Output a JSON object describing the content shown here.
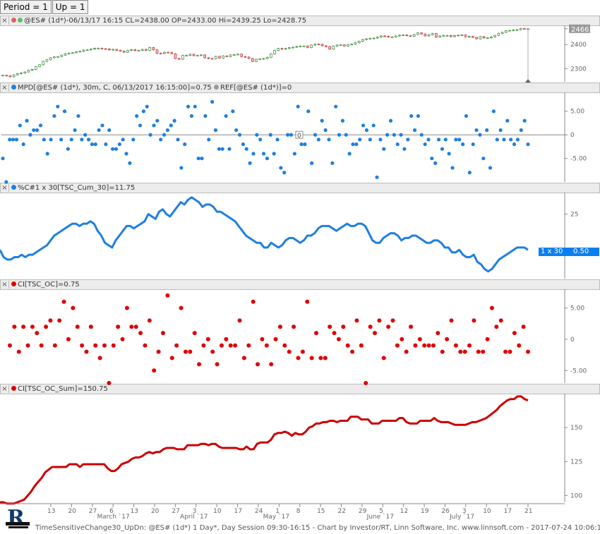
{
  "tabs": [
    {
      "label": "Period = 1"
    },
    {
      "label": "Up = 1"
    }
  ],
  "panes": [
    {
      "title": "@ES# (1d*)-06/13/17 16:15 CL=2438.00 OP=2433.00 Hi=2439.25 Lo=2428.75",
      "dot_colors": [
        "#e06060",
        "#60c060"
      ]
    },
    {
      "title": "MPD[@ES# (1d*), 30m, C, 06/13/2017 16:15:00]=0.75 ",
      "title2": "REF[@ES# (1d*)]=0",
      "dot_colors": [
        "#1e7fe0"
      ]
    },
    {
      "title": "%C#1 x 30[TSC_Cum_30]=11.75",
      "dot_colors": [
        "#1e7fe0"
      ]
    },
    {
      "title": "CI[TSC_OC]=0.75",
      "dot_colors": [
        "#e00000"
      ]
    },
    {
      "title": "CI[TSC_OC_Sum]=150.75",
      "dot_colors": [
        "#e00000"
      ]
    }
  ],
  "badge": {
    "label": "1 x 30",
    "value": "0.50"
  },
  "zero_marker": "0",
  "last_price": "2466",
  "footer": "TimeSensitiveChange30_UpDn: @ES# (1d*) 1 Day*, Day Session 09:30-16:15 - Chart by Investor/RT, Linn Software, Inc. www.linnsoft.com - 2017-07-24 10:06:10",
  "colors": {
    "blue": "#1e7fe0",
    "red": "#e00000",
    "price_up": "#2e8b2e",
    "price_down": "#cc3333"
  },
  "chart_data": [
    {
      "type": "candlestick",
      "title": "@ES# (1d*)-06/13/17 16:15 CL=2438.00 OP=2433.00 Hi=2439.25 Lo=2428.75",
      "yticks": [
        2466,
        2400,
        2300
      ],
      "ylim": [
        2245,
        2480
      ],
      "close": [
        2272,
        2270,
        2266,
        2274,
        2279,
        2282,
        2286,
        2293,
        2297,
        2308,
        2316,
        2330,
        2337,
        2345,
        2349,
        2350,
        2356,
        2362,
        2364,
        2366,
        2370,
        2372,
        2377,
        2378,
        2381,
        2385,
        2385,
        2383,
        2382,
        2378,
        2380,
        2376,
        2373,
        2368,
        2376,
        2379,
        2375,
        2376,
        2380,
        2376,
        2388,
        2378,
        2364,
        2363,
        2368,
        2367,
        2362,
        2342,
        2339,
        2355,
        2355,
        2360,
        2354,
        2355,
        2357,
        2345,
        2342,
        2341,
        2351,
        2344,
        2353,
        2350,
        2357,
        2358,
        2360,
        2350,
        2348,
        2342,
        2330,
        2339,
        2340,
        2342,
        2347,
        2361,
        2376,
        2384,
        2381,
        2384,
        2387,
        2389,
        2392,
        2394,
        2394,
        2388,
        2398,
        2402,
        2401,
        2395,
        2392,
        2381,
        2394,
        2398,
        2399,
        2394,
        2400,
        2402,
        2408,
        2414,
        2421,
        2424,
        2426,
        2427,
        2431,
        2436,
        2435,
        2432,
        2432,
        2436,
        2439,
        2440,
        2437,
        2435,
        2442,
        2449,
        2444,
        2436,
        2441,
        2446,
        2431,
        2436,
        2438,
        2438,
        2433,
        2438,
        2439,
        2440,
        2432,
        2434,
        2430,
        2424,
        2433,
        2428,
        2428,
        2432,
        2438,
        2447,
        2451,
        2458,
        2459,
        2461,
        2462,
        2467,
        2466,
        2466
      ]
    },
    {
      "type": "scatter",
      "title": "MPD",
      "ylim": [
        -10,
        9
      ],
      "yticks": [
        5,
        0,
        -5
      ],
      "values": [
        -5,
        -10,
        -1,
        -1,
        -1,
        2,
        -2,
        3,
        0,
        1,
        1,
        2,
        -1,
        -4,
        -1,
        4,
        6,
        -1,
        5,
        -3,
        -1,
        1,
        4,
        -1,
        0,
        -1,
        -2,
        -2,
        1,
        2,
        -2,
        1,
        -3,
        -3,
        -2,
        -1,
        -4,
        -6,
        -1,
        4,
        2,
        5,
        6,
        0,
        2,
        3,
        -1,
        0,
        1,
        2,
        3,
        -1,
        -7,
        -2,
        6,
        4,
        6,
        -5,
        -5,
        4,
        -1,
        7,
        1,
        -3,
        -3,
        4,
        -3,
        5,
        1,
        0,
        -2,
        -3,
        -6,
        -4,
        0,
        -1,
        -4,
        -5,
        0,
        -4,
        -1,
        -7,
        -8,
        0,
        0,
        -4,
        6,
        -2,
        -2,
        5,
        -6,
        0,
        -1,
        3,
        1,
        -1,
        -6,
        6,
        0,
        3,
        0,
        -4,
        -2,
        -2,
        -1,
        2,
        1,
        -1,
        2,
        -9,
        -1,
        -3,
        0,
        3,
        0,
        -2,
        0,
        -3,
        -1,
        4,
        1,
        4,
        0,
        -2,
        -1,
        -5,
        -6,
        -1,
        -3,
        -1,
        -4,
        -7,
        -1,
        -1,
        -2,
        4,
        -8,
        -2,
        1,
        0,
        -5,
        1,
        -7,
        5,
        -1,
        1,
        -1,
        3,
        -1,
        -2,
        -1,
        1,
        3,
        -2
      ]
    },
    {
      "type": "line",
      "title": "%C#1 x 30[TSC_Cum_30]=11.75",
      "ylim": [
        -2,
        34
      ],
      "yticks": [
        25
      ],
      "values": [
        10,
        7,
        6,
        6,
        7,
        7,
        8,
        7,
        8,
        8,
        9,
        10,
        11,
        12,
        14,
        16,
        17,
        18,
        19,
        20,
        21,
        21,
        20,
        21,
        21,
        22,
        21,
        18,
        16,
        13,
        12,
        11,
        14,
        16,
        18,
        20,
        20,
        19,
        20,
        21,
        22,
        25,
        24,
        23,
        26,
        27,
        25,
        24,
        26,
        28,
        30,
        29,
        31,
        32,
        31,
        30,
        28,
        29,
        29,
        28,
        26,
        26,
        25,
        24,
        23,
        22,
        20,
        18,
        16,
        15,
        14,
        13,
        13,
        11,
        11,
        13,
        12,
        11,
        12,
        14,
        15,
        15,
        14,
        13,
        14,
        16,
        16,
        17,
        19,
        20,
        20,
        20,
        19,
        18,
        19,
        20,
        21,
        20,
        20,
        21,
        21,
        20,
        17,
        14,
        13,
        13,
        15,
        16,
        17,
        17,
        16,
        14,
        15,
        15,
        16,
        16,
        15,
        14,
        13,
        13,
        14,
        14,
        13,
        11,
        11,
        9,
        9,
        10,
        8,
        7,
        7,
        8,
        5,
        4,
        2,
        1,
        2,
        4,
        6,
        7,
        8,
        9,
        10,
        11,
        11,
        11,
        10
      ]
    },
    {
      "type": "scatter",
      "title": "CI[TSC_OC]=0.75",
      "ylim": [
        -7,
        8
      ],
      "yticks": [
        5,
        0,
        -5
      ],
      "values": [
        -1,
        2,
        -2,
        2,
        -1,
        2,
        1,
        -1,
        2,
        3,
        -1,
        3,
        6,
        0,
        5,
        2,
        -1,
        -2,
        2,
        -1,
        -3,
        -1,
        -7,
        -1,
        2,
        0,
        5,
        2,
        2,
        1,
        -1,
        3,
        -5,
        -2,
        1,
        7,
        -3,
        -1,
        5,
        -2,
        -2,
        1,
        -4,
        -1,
        0,
        -2,
        -4,
        -1,
        0,
        -1,
        -1,
        3,
        -3,
        -1,
        6,
        -4,
        0,
        -1,
        -4,
        0,
        2,
        -1,
        -2,
        2,
        -3,
        -2,
        6,
        -3,
        1,
        -3,
        -3,
        2,
        1,
        0,
        2,
        -1,
        -2,
        3,
        -1,
        -7,
        2,
        1,
        3,
        -3,
        2,
        3,
        -1,
        0,
        -2,
        2,
        -1,
        0,
        -1,
        -1,
        -1,
        1,
        -2,
        0,
        3,
        -1,
        -2,
        -2,
        -1,
        3,
        -2,
        -2,
        0,
        5,
        2,
        3,
        -2,
        -2,
        1,
        -1,
        2,
        -2
      ]
    },
    {
      "type": "line",
      "title": "CI[TSC_OC_Sum]=150.75",
      "ylim": [
        95,
        175
      ],
      "yticks": [
        150,
        125,
        100
      ],
      "values": [
        95,
        95,
        94,
        94,
        94,
        95,
        96,
        97,
        100,
        103,
        107,
        110,
        113,
        117,
        119,
        121,
        121,
        121,
        121,
        121,
        123,
        123,
        123,
        121,
        123,
        123,
        123,
        123,
        123,
        123,
        123,
        120,
        118,
        118,
        120,
        123,
        124,
        125,
        127,
        128,
        128,
        129,
        131,
        132,
        131,
        132,
        132,
        134,
        135,
        135,
        135,
        134,
        134,
        134,
        137,
        137,
        137,
        137,
        138,
        138,
        137,
        138,
        138,
        136,
        135,
        135,
        135,
        135,
        135,
        134,
        134,
        136,
        134,
        134,
        138,
        139,
        139,
        139,
        141,
        145,
        146,
        146,
        147,
        146,
        144,
        146,
        145,
        145,
        147,
        150,
        151,
        153,
        153,
        154,
        154,
        155,
        155,
        154,
        155,
        155,
        155,
        158,
        158,
        158,
        156,
        156,
        156,
        153,
        153,
        153,
        155,
        155,
        155,
        155,
        155,
        157,
        157,
        154,
        153,
        153,
        153,
        155,
        155,
        155,
        155,
        157,
        155,
        154,
        154,
        154,
        153,
        152,
        152,
        152,
        152,
        153,
        154,
        154,
        155,
        156,
        157,
        159,
        161,
        163,
        166,
        168,
        170,
        171,
        171,
        173,
        173,
        171,
        170
      ]
    }
  ],
  "xaxis": {
    "ticks": [
      "13",
      "20",
      "27",
      "March `17",
      "6",
      "13",
      "20",
      "27",
      "April `17",
      "3",
      "10",
      "17",
      "24",
      "May `17",
      "1",
      "8",
      "15",
      "22",
      "29",
      "June `17",
      "5",
      "12",
      "19",
      "26",
      "July `17",
      "3",
      "10",
      "17",
      "21"
    ]
  }
}
